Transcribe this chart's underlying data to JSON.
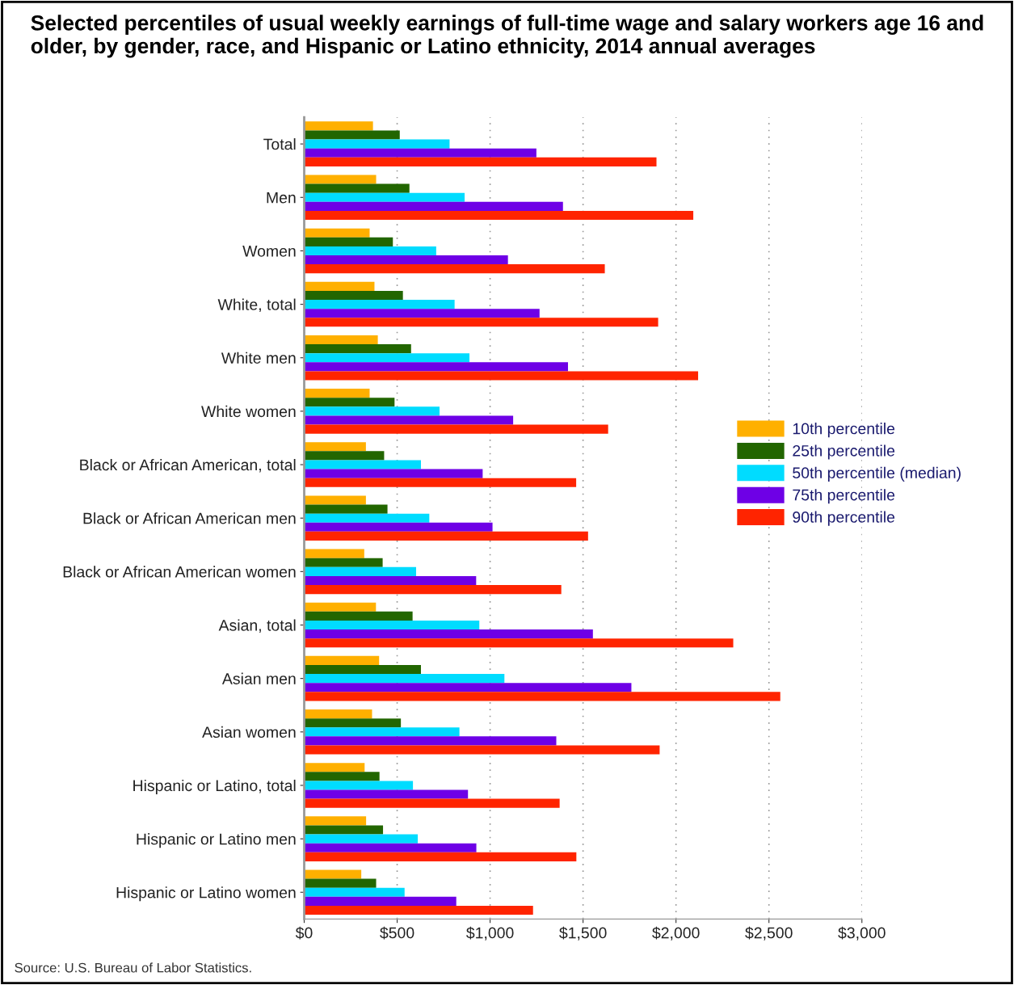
{
  "chart_data": {
    "type": "bar",
    "orientation": "horizontal",
    "title": "Selected percentiles of usual weekly earnings of full-time wage and salary workers age 16 and older, by gender, race, and Hispanic or Latino ethnicity, 2014 annual averages",
    "categories": [
      "Total",
      "Men",
      "Women",
      "White, total",
      "White men",
      "White women",
      "Black or African American, total",
      "Black or African American men",
      "Black or African American women",
      "Asian, total",
      "Asian men",
      "Asian women",
      "Hispanic or Latino, total",
      "Hispanic or Latino men",
      "Hispanic or Latino women"
    ],
    "series": [
      {
        "name": "10th percentile",
        "color": "#ffb000",
        "values": [
          370,
          387,
          352,
          378,
          396,
          352,
          332,
          332,
          323,
          386,
          403,
          365,
          325,
          333,
          307
        ]
      },
      {
        "name": "25th percentile",
        "color": "#226600",
        "values": [
          514,
          566,
          477,
          531,
          575,
          486,
          430,
          448,
          422,
          583,
          628,
          520,
          405,
          424,
          387
        ]
      },
      {
        "name": "50th percentile (median)",
        "color": "#00dcff",
        "values": [
          782,
          863,
          710,
          809,
          889,
          728,
          628,
          673,
          602,
          942,
          1077,
          835,
          585,
          611,
          540
        ]
      },
      {
        "name": "75th percentile",
        "color": "#6e00e6",
        "values": [
          1249,
          1392,
          1096,
          1266,
          1419,
          1124,
          960,
          1013,
          925,
          1553,
          1760,
          1356,
          881,
          926,
          818
        ]
      },
      {
        "name": "90th percentile",
        "color": "#ff2400",
        "values": [
          1895,
          2093,
          1617,
          1904,
          2119,
          1635,
          1463,
          1527,
          1383,
          2308,
          2561,
          1912,
          1374,
          1464,
          1231
        ]
      }
    ],
    "xlim": [
      0,
      3000
    ],
    "xticks": [
      {
        "value": 0,
        "label": "$0"
      },
      {
        "value": 500,
        "label": "$500"
      },
      {
        "value": 1000,
        "label": "$1,000"
      },
      {
        "value": 1500,
        "label": "$1,500"
      },
      {
        "value": 2000,
        "label": "$2,000"
      },
      {
        "value": 2500,
        "label": "$2,500"
      },
      {
        "value": 3000,
        "label": "$3,000"
      }
    ],
    "grid": "x",
    "legend": "right",
    "annotations": [
      "Source: U.S. Bureau of Labor Statistics."
    ]
  }
}
